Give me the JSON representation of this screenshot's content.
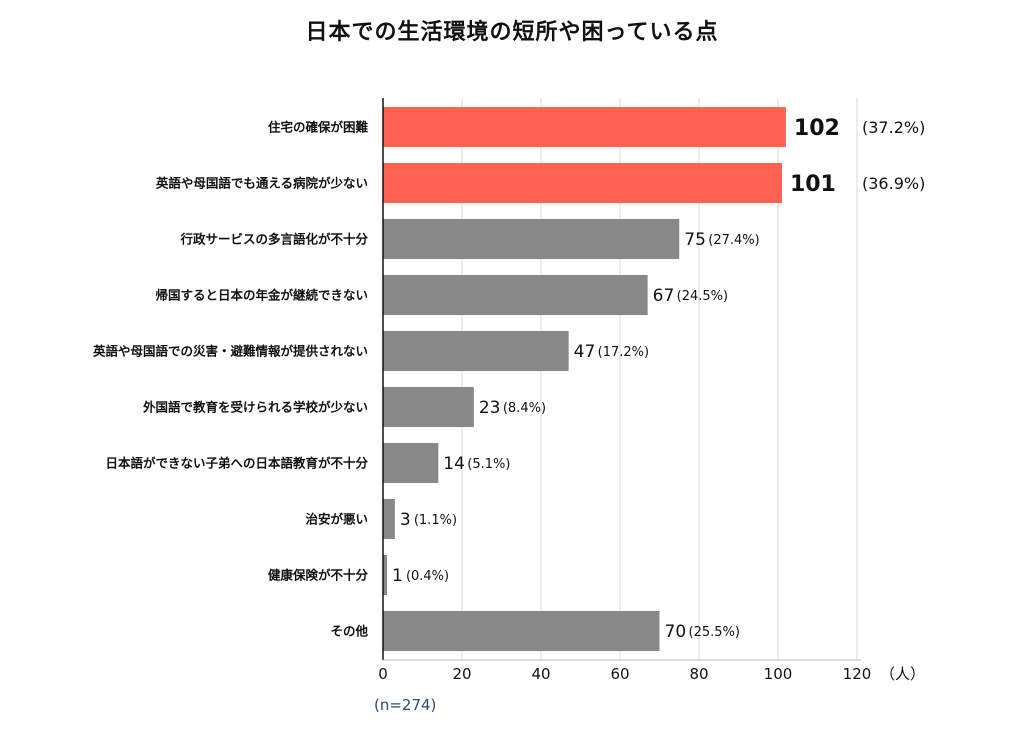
{
  "title": "日本での生活環境の短所や困っている点",
  "chart_data": {
    "type": "bar",
    "orientation": "horizontal",
    "title": "日本での生活環境の短所や困っている点",
    "categories": [
      "住宅の確保が困難",
      "英語や母国語でも通える病院が少ない",
      "行政サービスの多言語化が不十分",
      "帰国すると日本の年金が継続できない",
      "英語や母国語での災害・避難情報が提供されない",
      "外国語で教育を受けられる学校が少ない",
      "日本語ができない子弟への日本語教育が不十分",
      "治安が悪い",
      "健康保険が不十分",
      "その他"
    ],
    "values": [
      102,
      101,
      75,
      67,
      47,
      23,
      14,
      3,
      1,
      70
    ],
    "percent_labels": [
      "(37.2%)",
      "(36.9%)",
      "(27.4%)",
      "(24.5%)",
      "(17.2%)",
      "(8.4%)",
      "(5.1%)",
      "(1.1%)",
      "(0.4%)",
      "(25.5%)"
    ],
    "highlighted": [
      true,
      true,
      false,
      false,
      false,
      false,
      false,
      false,
      false,
      false
    ],
    "colors": {
      "highlight": "#ff6250",
      "normal": "#888888",
      "grid": "#d9d9d9",
      "axis": "#111111",
      "n_label": "#2d4a7a"
    },
    "xlim": [
      0,
      120
    ],
    "x_ticks": [
      0,
      20,
      40,
      60,
      80,
      100,
      120
    ],
    "x_unit": "（人）",
    "n_label": "(n=274)",
    "grid": true
  }
}
